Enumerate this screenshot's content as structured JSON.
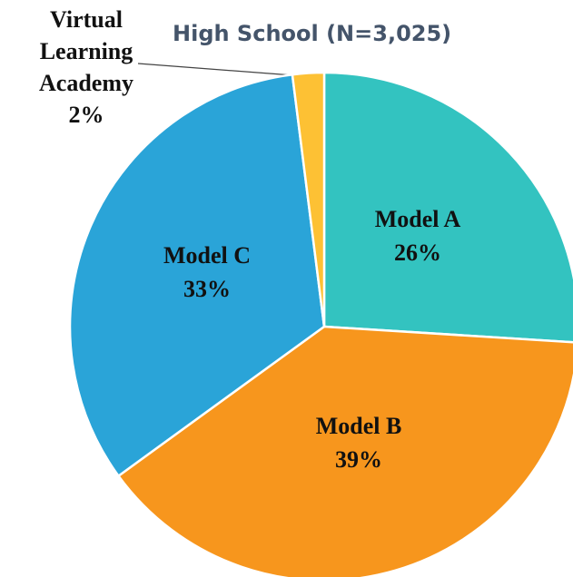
{
  "chart_data": {
    "type": "pie",
    "title": "High School (N=3,025)",
    "categories": [
      "Model A",
      "Model B",
      "Model C",
      "Virtual Learning Academy"
    ],
    "values": [
      26,
      39,
      33,
      2
    ],
    "value_labels": [
      "26%",
      "39%",
      "33%",
      "2%"
    ],
    "colors": [
      "#33c3c0",
      "#f7961d",
      "#2aa4d8",
      "#fdc134"
    ]
  }
}
